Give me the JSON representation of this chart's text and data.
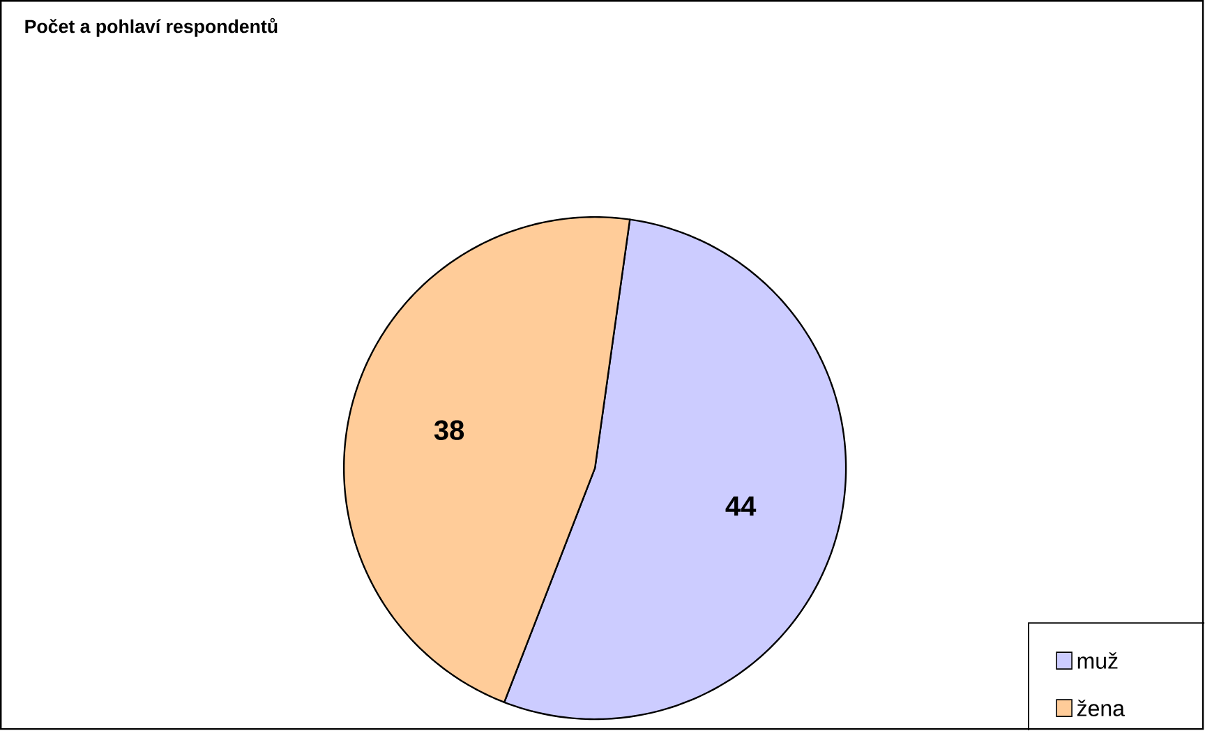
{
  "chart_data": {
    "type": "pie",
    "title": "Počet a pohlaví respondentů",
    "categories": [
      "muž",
      "žena"
    ],
    "values": [
      44,
      38
    ],
    "colors": [
      "#ccccff",
      "#ffcc99"
    ],
    "data_labels": true,
    "legend": "bottom right"
  }
}
